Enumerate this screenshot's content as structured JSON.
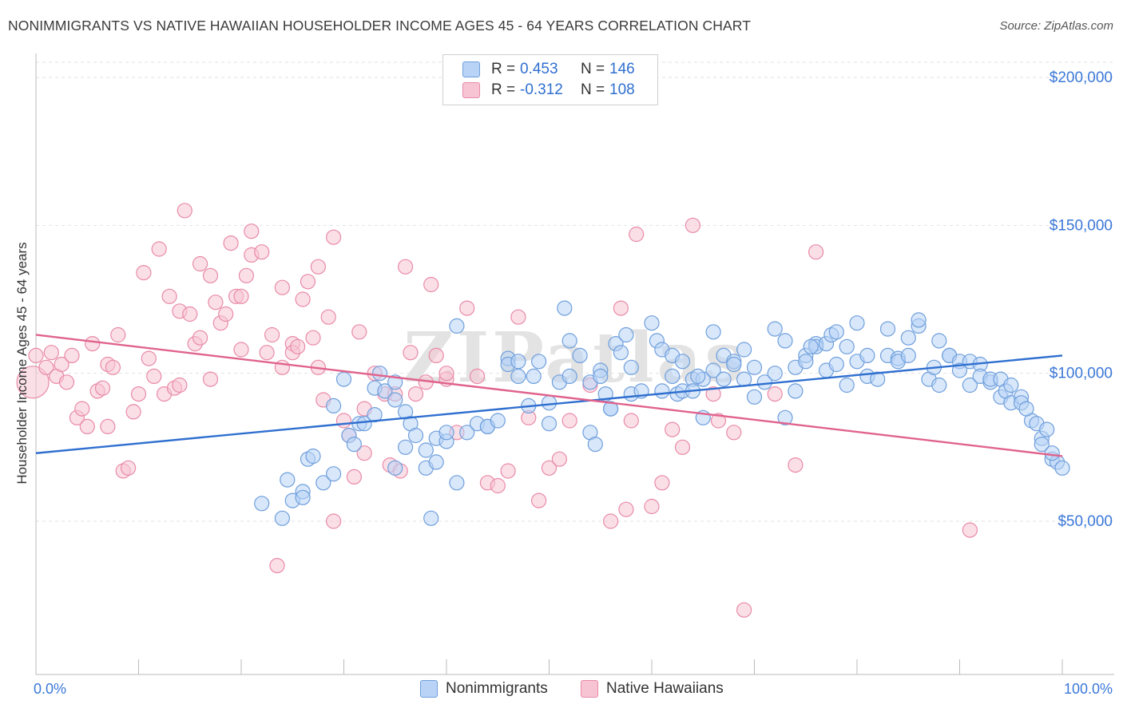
{
  "title": "NONIMMIGRANTS VS NATIVE HAWAIIAN HOUSEHOLDER INCOME AGES 45 - 64 YEARS CORRELATION CHART",
  "source": "Source: ZipAtlas.com",
  "watermark": "ZIPatlas",
  "legend": {
    "rows": [
      {
        "r_label": "R =",
        "r_value": "0.453",
        "n_label": "N =",
        "n_value": "146"
      },
      {
        "r_label": "R =",
        "r_value": "-0.312",
        "n_label": "N =",
        "n_value": "108"
      }
    ]
  },
  "chart_data": {
    "type": "scatter",
    "xlabel": "",
    "ylabel": "Householder Income Ages 45 - 64 years",
    "xlim": [
      0,
      100
    ],
    "ylim": [
      0,
      205000
    ],
    "x_tick_labels": [
      "0.0%",
      "100.0%"
    ],
    "y_ticks": [
      50000,
      100000,
      150000,
      200000
    ],
    "y_tick_labels": [
      "$50,000",
      "$100,000",
      "$150,000",
      "$200,000"
    ],
    "grid": true,
    "legend_position": "top-center",
    "colors": {
      "Nonimmigrants": {
        "fill": "#b8d3f5",
        "stroke": "#6f9fdc",
        "line": "#2f6fcf"
      },
      "Native Hawaiians": {
        "fill": "#f7c4d4",
        "stroke": "#e88aa8",
        "line": "#e0638d"
      }
    },
    "series": [
      {
        "name": "Nonimmigrants",
        "trend": {
          "x": [
            0,
            100
          ],
          "y": [
            73000,
            106000
          ]
        },
        "points": [
          [
            22,
            56000
          ],
          [
            24,
            51000
          ],
          [
            24.5,
            64000
          ],
          [
            25,
            57000
          ],
          [
            26,
            60000
          ],
          [
            26,
            58000
          ],
          [
            26.5,
            71000
          ],
          [
            27,
            72000
          ],
          [
            28,
            63000
          ],
          [
            29,
            66000
          ],
          [
            29,
            89000
          ],
          [
            30,
            98000
          ],
          [
            30.5,
            79000
          ],
          [
            31,
            76000
          ],
          [
            31.5,
            83000
          ],
          [
            32,
            83000
          ],
          [
            33,
            86000
          ],
          [
            33,
            95000
          ],
          [
            33.5,
            100000
          ],
          [
            34,
            94000
          ],
          [
            35,
            91000
          ],
          [
            35,
            97000
          ],
          [
            35,
            68000
          ],
          [
            36,
            87000
          ],
          [
            36,
            75000
          ],
          [
            36.5,
            83000
          ],
          [
            37,
            79000
          ],
          [
            38,
            74000
          ],
          [
            38,
            68000
          ],
          [
            38.5,
            51000
          ],
          [
            39,
            70000
          ],
          [
            39,
            78000
          ],
          [
            40,
            77000
          ],
          [
            40,
            80000
          ],
          [
            41,
            63000
          ],
          [
            41,
            116000
          ],
          [
            42,
            80000
          ],
          [
            43,
            83000
          ],
          [
            44,
            82000
          ],
          [
            44,
            82000
          ],
          [
            45,
            84000
          ],
          [
            46,
            105000
          ],
          [
            46,
            103000
          ],
          [
            47,
            99000
          ],
          [
            47,
            104000
          ],
          [
            48,
            89000
          ],
          [
            48.5,
            99000
          ],
          [
            49,
            104000
          ],
          [
            50,
            83000
          ],
          [
            50,
            90000
          ],
          [
            51,
            97000
          ],
          [
            51.5,
            122000
          ],
          [
            52,
            111000
          ],
          [
            52,
            99000
          ],
          [
            53,
            106000
          ],
          [
            54,
            97000
          ],
          [
            54,
            80000
          ],
          [
            54.5,
            76000
          ],
          [
            55,
            101000
          ],
          [
            55,
            99000
          ],
          [
            55.5,
            93000
          ],
          [
            56,
            88000
          ],
          [
            56.5,
            110000
          ],
          [
            57,
            107000
          ],
          [
            57.5,
            113000
          ],
          [
            58,
            102000
          ],
          [
            58,
            93000
          ],
          [
            59,
            94000
          ],
          [
            60,
            117000
          ],
          [
            60.5,
            111000
          ],
          [
            61,
            108000
          ],
          [
            62,
            106000
          ],
          [
            62,
            99000
          ],
          [
            62.5,
            93000
          ],
          [
            63,
            104000
          ],
          [
            63,
            94000
          ],
          [
            64,
            98000
          ],
          [
            64,
            94000
          ],
          [
            65,
            98000
          ],
          [
            65,
            85000
          ],
          [
            66,
            101000
          ],
          [
            66,
            114000
          ],
          [
            67,
            98000
          ],
          [
            67,
            106000
          ],
          [
            68,
            104000
          ],
          [
            68,
            103000
          ],
          [
            69,
            108000
          ],
          [
            70,
            92000
          ],
          [
            70,
            102000
          ],
          [
            71,
            97000
          ],
          [
            72,
            100000
          ],
          [
            72,
            115000
          ],
          [
            73,
            85000
          ],
          [
            73,
            111000
          ],
          [
            74,
            102000
          ],
          [
            74,
            94000
          ],
          [
            75,
            106000
          ],
          [
            75,
            104000
          ],
          [
            76,
            110000
          ],
          [
            76,
            109000
          ],
          [
            77,
            101000
          ],
          [
            77,
            110000
          ],
          [
            77.5,
            113000
          ],
          [
            78,
            114000
          ],
          [
            78,
            103000
          ],
          [
            79,
            96000
          ],
          [
            79,
            109000
          ],
          [
            80,
            104000
          ],
          [
            80,
            117000
          ],
          [
            81,
            106000
          ],
          [
            81,
            99000
          ],
          [
            82,
            98000
          ],
          [
            83,
            115000
          ],
          [
            83,
            106000
          ],
          [
            84,
            105000
          ],
          [
            84,
            104000
          ],
          [
            85,
            106000
          ],
          [
            85,
            112000
          ],
          [
            86,
            116000
          ],
          [
            86,
            118000
          ],
          [
            87,
            98000
          ],
          [
            88,
            96000
          ],
          [
            88,
            111000
          ],
          [
            89,
            106000
          ],
          [
            89,
            106000
          ],
          [
            90,
            104000
          ],
          [
            90,
            101000
          ],
          [
            91,
            96000
          ],
          [
            91,
            104000
          ],
          [
            92,
            103000
          ],
          [
            92,
            99000
          ],
          [
            93,
            97000
          ],
          [
            93,
            98000
          ],
          [
            94,
            98000
          ],
          [
            94,
            92000
          ],
          [
            94.5,
            94000
          ],
          [
            95,
            90000
          ],
          [
            95,
            96000
          ],
          [
            96,
            92000
          ],
          [
            96,
            90000
          ],
          [
            97,
            84000
          ],
          [
            97.5,
            83000
          ],
          [
            98,
            78000
          ],
          [
            98,
            76000
          ],
          [
            98.5,
            81000
          ],
          [
            99,
            71000
          ],
          [
            99.5,
            70000
          ],
          [
            100,
            68000
          ],
          [
            96.5,
            88000
          ],
          [
            99,
            73000
          ],
          [
            75.5,
            109000
          ],
          [
            56,
            88000
          ],
          [
            61,
            94000
          ],
          [
            69,
            98000
          ],
          [
            87.5,
            102000
          ],
          [
            64.5,
            99000
          ]
        ]
      },
      {
        "name": "Native Hawaiians",
        "trend": {
          "x": [
            0,
            100
          ],
          "y": [
            113000,
            72000
          ]
        },
        "points": [
          [
            -0.3,
            97000
          ],
          [
            0,
            106000
          ],
          [
            1,
            102000
          ],
          [
            1.5,
            107000
          ],
          [
            2,
            99000
          ],
          [
            2.5,
            103000
          ],
          [
            3,
            97000
          ],
          [
            3.5,
            106000
          ],
          [
            4,
            85000
          ],
          [
            4.5,
            88000
          ],
          [
            5,
            82000
          ],
          [
            5.5,
            110000
          ],
          [
            6,
            94000
          ],
          [
            6.5,
            95000
          ],
          [
            7,
            82000
          ],
          [
            7,
            103000
          ],
          [
            7.5,
            102000
          ],
          [
            8,
            113000
          ],
          [
            8.5,
            67000
          ],
          [
            9,
            68000
          ],
          [
            9.5,
            87000
          ],
          [
            10,
            93000
          ],
          [
            10.5,
            134000
          ],
          [
            11,
            105000
          ],
          [
            11.5,
            99000
          ],
          [
            12,
            142000
          ],
          [
            12.5,
            93000
          ],
          [
            13,
            126000
          ],
          [
            13.5,
            95000
          ],
          [
            14,
            121000
          ],
          [
            14.5,
            155000
          ],
          [
            15,
            120000
          ],
          [
            15.5,
            110000
          ],
          [
            16,
            112000
          ],
          [
            16,
            137000
          ],
          [
            17,
            133000
          ],
          [
            17,
            98000
          ],
          [
            17.5,
            124000
          ],
          [
            18,
            117000
          ],
          [
            18.5,
            120000
          ],
          [
            19,
            144000
          ],
          [
            19.5,
            126000
          ],
          [
            20,
            126000
          ],
          [
            20.5,
            133000
          ],
          [
            21,
            140000
          ],
          [
            21,
            148000
          ],
          [
            22,
            141000
          ],
          [
            22.5,
            107000
          ],
          [
            23,
            113000
          ],
          [
            24,
            102000
          ],
          [
            24,
            129000
          ],
          [
            25,
            110000
          ],
          [
            25,
            107000
          ],
          [
            25.5,
            109000
          ],
          [
            26,
            125000
          ],
          [
            26.5,
            131000
          ],
          [
            27,
            112000
          ],
          [
            27.5,
            136000
          ],
          [
            28,
            91000
          ],
          [
            28.5,
            119000
          ],
          [
            29,
            50000
          ],
          [
            29,
            146000
          ],
          [
            30,
            84000
          ],
          [
            30.5,
            79000
          ],
          [
            31,
            65000
          ],
          [
            31.5,
            114000
          ],
          [
            32,
            73000
          ],
          [
            32,
            88000
          ],
          [
            33,
            100000
          ],
          [
            34,
            93000
          ],
          [
            34.5,
            69000
          ],
          [
            35,
            93000
          ],
          [
            35.5,
            67000
          ],
          [
            36,
            136000
          ],
          [
            36.5,
            107000
          ],
          [
            37,
            93000
          ],
          [
            38,
            97000
          ],
          [
            38.5,
            130000
          ],
          [
            39,
            106000
          ],
          [
            40,
            98000
          ],
          [
            41,
            80000
          ],
          [
            42,
            122000
          ],
          [
            43,
            99000
          ],
          [
            44,
            63000
          ],
          [
            45,
            62000
          ],
          [
            46,
            67000
          ],
          [
            47,
            119000
          ],
          [
            48,
            85000
          ],
          [
            49,
            57000
          ],
          [
            50,
            68000
          ],
          [
            51,
            71000
          ],
          [
            52,
            84000
          ],
          [
            54,
            96000
          ],
          [
            56,
            50000
          ],
          [
            57,
            122000
          ],
          [
            57.5,
            54000
          ],
          [
            58,
            84000
          ],
          [
            58.5,
            147000
          ],
          [
            60,
            55000
          ],
          [
            61,
            63000
          ],
          [
            62,
            81000
          ],
          [
            63,
            75000
          ],
          [
            64,
            150000
          ],
          [
            66,
            93000
          ],
          [
            66.5,
            84000
          ],
          [
            68,
            80000
          ],
          [
            69,
            20000
          ],
          [
            72,
            93000
          ],
          [
            74,
            69000
          ],
          [
            76,
            141000
          ],
          [
            14,
            96000
          ],
          [
            23.5,
            35000
          ],
          [
            91,
            47000
          ],
          [
            40,
            100000
          ],
          [
            20,
            108000
          ],
          [
            27.5,
            102000
          ]
        ]
      }
    ]
  },
  "bottom_legend": {
    "items": [
      {
        "label": "Nonimmigrants"
      },
      {
        "label": "Native Hawaiians"
      }
    ]
  }
}
